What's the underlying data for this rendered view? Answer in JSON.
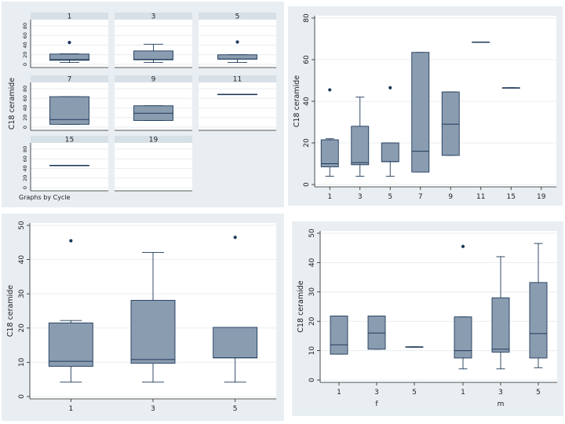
{
  "chart_data": [
    {
      "id": "a",
      "type": "box",
      "layout": "small-multiples",
      "ylabel": "C18 ceramide",
      "note": "Graphs by Cycle",
      "yticks": [
        0,
        20,
        40,
        60,
        80
      ],
      "ylim": [
        0,
        80
      ],
      "facets": [
        {
          "label": "1",
          "stats": {
            "min": 4,
            "q1": 8.5,
            "med": 10,
            "q3": 21.5,
            "max": 22,
            "outliers": [
              45.5
            ]
          }
        },
        {
          "label": "3",
          "stats": {
            "min": 4,
            "q1": 9.5,
            "med": 10.5,
            "q3": 28,
            "max": 42,
            "outliers": []
          }
        },
        {
          "label": "5",
          "stats": {
            "min": 4,
            "q1": 11,
            "med": 11,
            "q3": 20,
            "max": 20,
            "outliers": [
              46.5
            ]
          }
        },
        {
          "label": "7",
          "stats": {
            "min": 6,
            "q1": 6,
            "med": 16,
            "q3": 63.5,
            "max": 63.5,
            "outliers": []
          }
        },
        {
          "label": "9",
          "stats": {
            "min": 14,
            "q1": 14,
            "med": 29,
            "q3": 44.5,
            "max": 44.5,
            "outliers": []
          }
        },
        {
          "label": "11",
          "stats": {
            "min": 68.5,
            "q1": 68.5,
            "med": 68.5,
            "q3": 68.5,
            "max": 68.5,
            "outliers": []
          }
        },
        {
          "label": "15",
          "stats": {
            "min": 46.5,
            "q1": 46.5,
            "med": 46.5,
            "q3": 46.5,
            "max": 46.5,
            "outliers": []
          }
        },
        {
          "label": "19",
          "stats": null
        }
      ]
    },
    {
      "id": "b",
      "type": "box",
      "ylabel": "C18 ceramide",
      "yticks": [
        0,
        20,
        40,
        60,
        80
      ],
      "ylim": [
        0,
        80
      ],
      "categories": [
        "1",
        "3",
        "5",
        "7",
        "9",
        "11",
        "15",
        "19"
      ],
      "boxes": [
        {
          "min": 4,
          "q1": 8.5,
          "med": 10,
          "q3": 21.5,
          "max": 22,
          "outliers": [
            45.5
          ]
        },
        {
          "min": 4,
          "q1": 9.5,
          "med": 10.5,
          "q3": 28,
          "max": 42,
          "outliers": []
        },
        {
          "min": 4,
          "q1": 11,
          "med": 11,
          "q3": 20,
          "max": 20,
          "outliers": [
            46.5
          ]
        },
        {
          "min": 6,
          "q1": 6,
          "med": 16,
          "q3": 63.5,
          "max": 63.5,
          "outliers": []
        },
        {
          "min": 14,
          "q1": 14,
          "med": 29,
          "q3": 44.5,
          "max": 44.5,
          "outliers": []
        },
        {
          "min": 68.5,
          "q1": 68.5,
          "med": 68.5,
          "q3": 68.5,
          "max": 68.5,
          "outliers": []
        },
        {
          "min": 46.5,
          "q1": 46.5,
          "med": 46.5,
          "q3": 46.5,
          "max": 46.5,
          "outliers": []
        },
        null
      ]
    },
    {
      "id": "c",
      "type": "box",
      "ylabel": "C18 ceramide",
      "yticks": [
        0,
        10,
        20,
        30,
        40,
        50
      ],
      "ylim": [
        0,
        50
      ],
      "categories": [
        "1",
        "3",
        "5"
      ],
      "boxes": [
        {
          "min": 4.2,
          "q1": 8.8,
          "med": 10.3,
          "q3": 21.5,
          "max": 22.2,
          "outliers": [
            45.5
          ]
        },
        {
          "min": 4.2,
          "q1": 9.7,
          "med": 10.8,
          "q3": 28.1,
          "max": 42.1,
          "outliers": []
        },
        {
          "min": 4.2,
          "q1": 11.3,
          "med": 11.3,
          "q3": 20.2,
          "max": 20.2,
          "outliers": [
            46.5
          ]
        }
      ]
    },
    {
      "id": "d",
      "type": "box",
      "ylabel": "C18 ceramide",
      "yticks": [
        0,
        10,
        20,
        30,
        40,
        50
      ],
      "ylim": [
        0,
        50
      ],
      "categories": [
        "1",
        "3",
        "5",
        "1",
        "3",
        "5"
      ],
      "groups": [
        "f",
        "m"
      ],
      "boxes": [
        {
          "min": 8.8,
          "q1": 8.8,
          "med": 12,
          "q3": 21.8,
          "max": 21.8,
          "outliers": []
        },
        {
          "min": 10.5,
          "q1": 10.5,
          "med": 16,
          "q3": 21.8,
          "max": 21.8,
          "outliers": []
        },
        {
          "min": 11.3,
          "q1": 11.3,
          "med": 11.3,
          "q3": 11.3,
          "max": 11.3,
          "outliers": []
        },
        {
          "min": 3.8,
          "q1": 7.5,
          "med": 10,
          "q3": 21.5,
          "max": 21.5,
          "outliers": [
            45.5
          ]
        },
        {
          "min": 3.8,
          "q1": 9.5,
          "med": 10.5,
          "q3": 28,
          "max": 42,
          "outliers": []
        },
        {
          "min": 4.2,
          "q1": 7.5,
          "med": 15.8,
          "q3": 33.2,
          "max": 46.5,
          "outliers": []
        }
      ]
    }
  ]
}
